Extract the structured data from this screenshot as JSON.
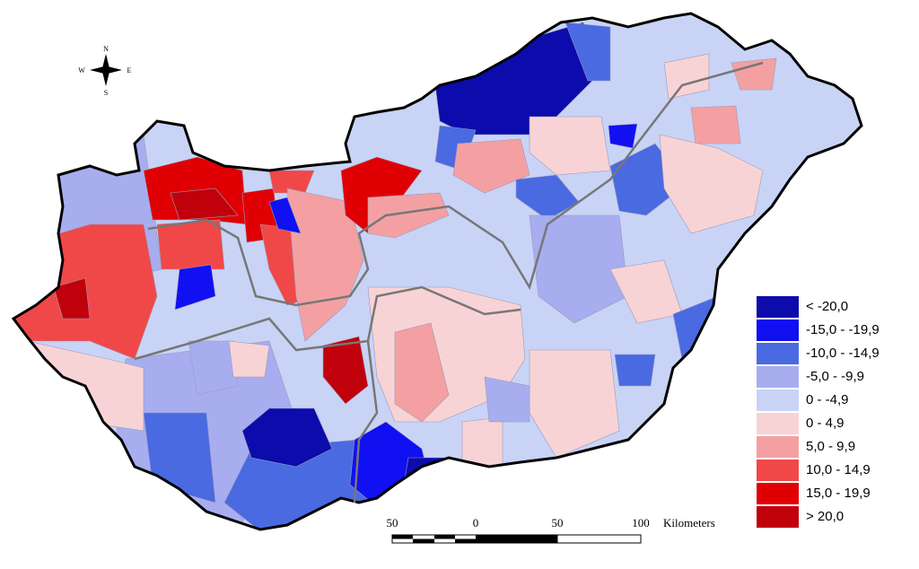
{
  "compass": {
    "north": "N",
    "south": "S",
    "east": "E",
    "west": "W"
  },
  "legend": {
    "items": [
      {
        "label": "< -20,0",
        "color": "#0c0cac"
      },
      {
        "label": "-15,0 - -19,9",
        "color": "#1010f2"
      },
      {
        "label": "-10,0 - -14,9",
        "color": "#4a6ae2"
      },
      {
        "label": "-5,0 - -9,9",
        "color": "#a8adf0"
      },
      {
        "label": "0 - -4,9",
        "color": "#c9d3f6"
      },
      {
        "label": "0 - 4,9",
        "color": "#f8d3d5"
      },
      {
        "label": "5,0 - 9,9",
        "color": "#f4a0a2"
      },
      {
        "label": "10,0 - 14,9",
        "color": "#f04848"
      },
      {
        "label": "15,0 - 19,9",
        "color": "#e00004"
      },
      {
        "label": "> 20,0",
        "color": "#c0000a"
      }
    ]
  },
  "scale_bar": {
    "labels": [
      "50",
      "0",
      "50",
      "100"
    ],
    "unit": "Kilometers"
  }
}
